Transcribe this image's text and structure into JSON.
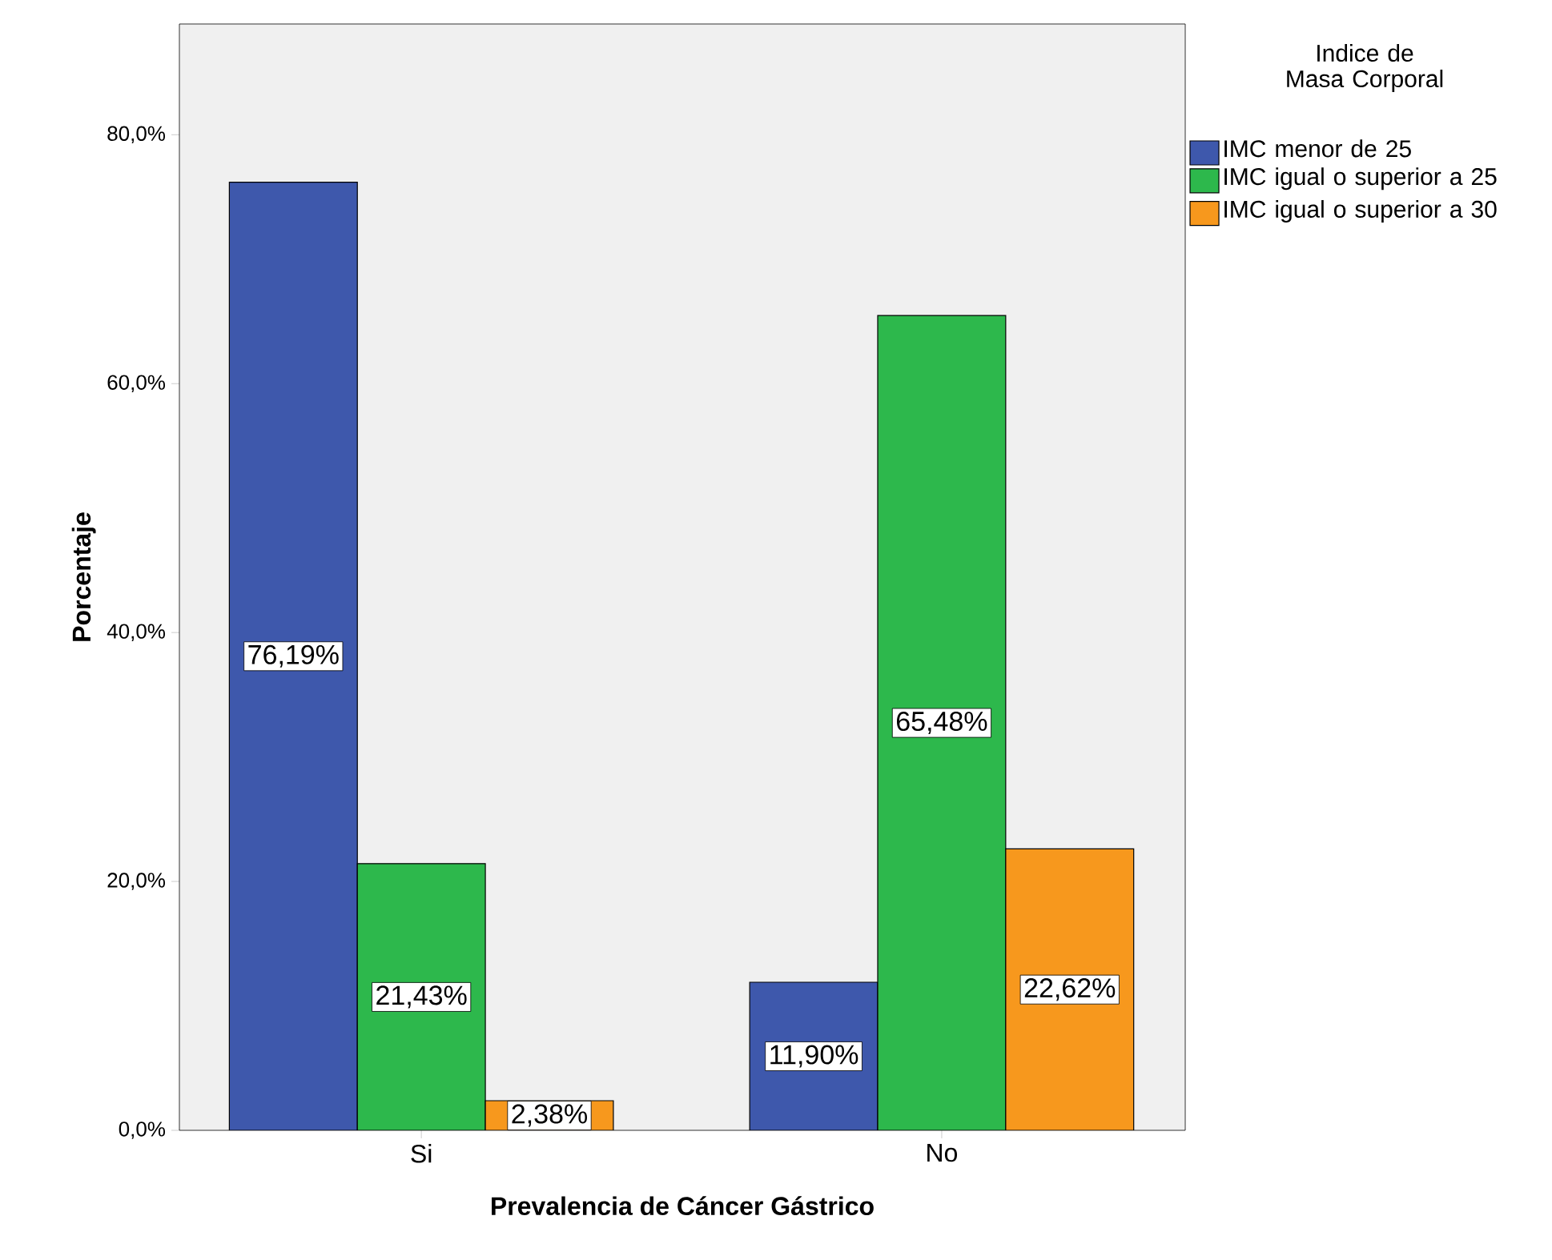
{
  "chart_data": {
    "type": "bar",
    "xlabel": "Prevalencia de Cáncer Gástrico",
    "ylabel": "Porcentaje",
    "legend_title": "Indice de Masa Corporal",
    "categories": [
      "Si",
      "No"
    ],
    "series": [
      {
        "name": "IMC menor de 25",
        "color": "#3e58ac",
        "values": [
          76.19,
          11.9
        ],
        "value_labels": [
          "76,19%",
          "11,90%"
        ]
      },
      {
        "name": "IMC igual o superior a 25",
        "color": "#2db84c",
        "values": [
          21.43,
          65.48
        ],
        "value_labels": [
          "21,43%",
          "65,48%"
        ]
      },
      {
        "name": "IMC igual o superior a 30",
        "color": "#f7981d",
        "values": [
          2.38,
          22.62
        ],
        "value_labels": [
          "2,38%",
          "22,62%"
        ]
      }
    ],
    "ylim": [
      0,
      88.9
    ],
    "yticks": [
      {
        "value": 0,
        "label": "0,0%"
      },
      {
        "value": 20,
        "label": "20,0%"
      },
      {
        "value": 40,
        "label": "40,0%"
      },
      {
        "value": 60,
        "label": "60,0%"
      },
      {
        "value": 80,
        "label": "80,0%"
      }
    ],
    "grid": false,
    "legend": "right"
  }
}
